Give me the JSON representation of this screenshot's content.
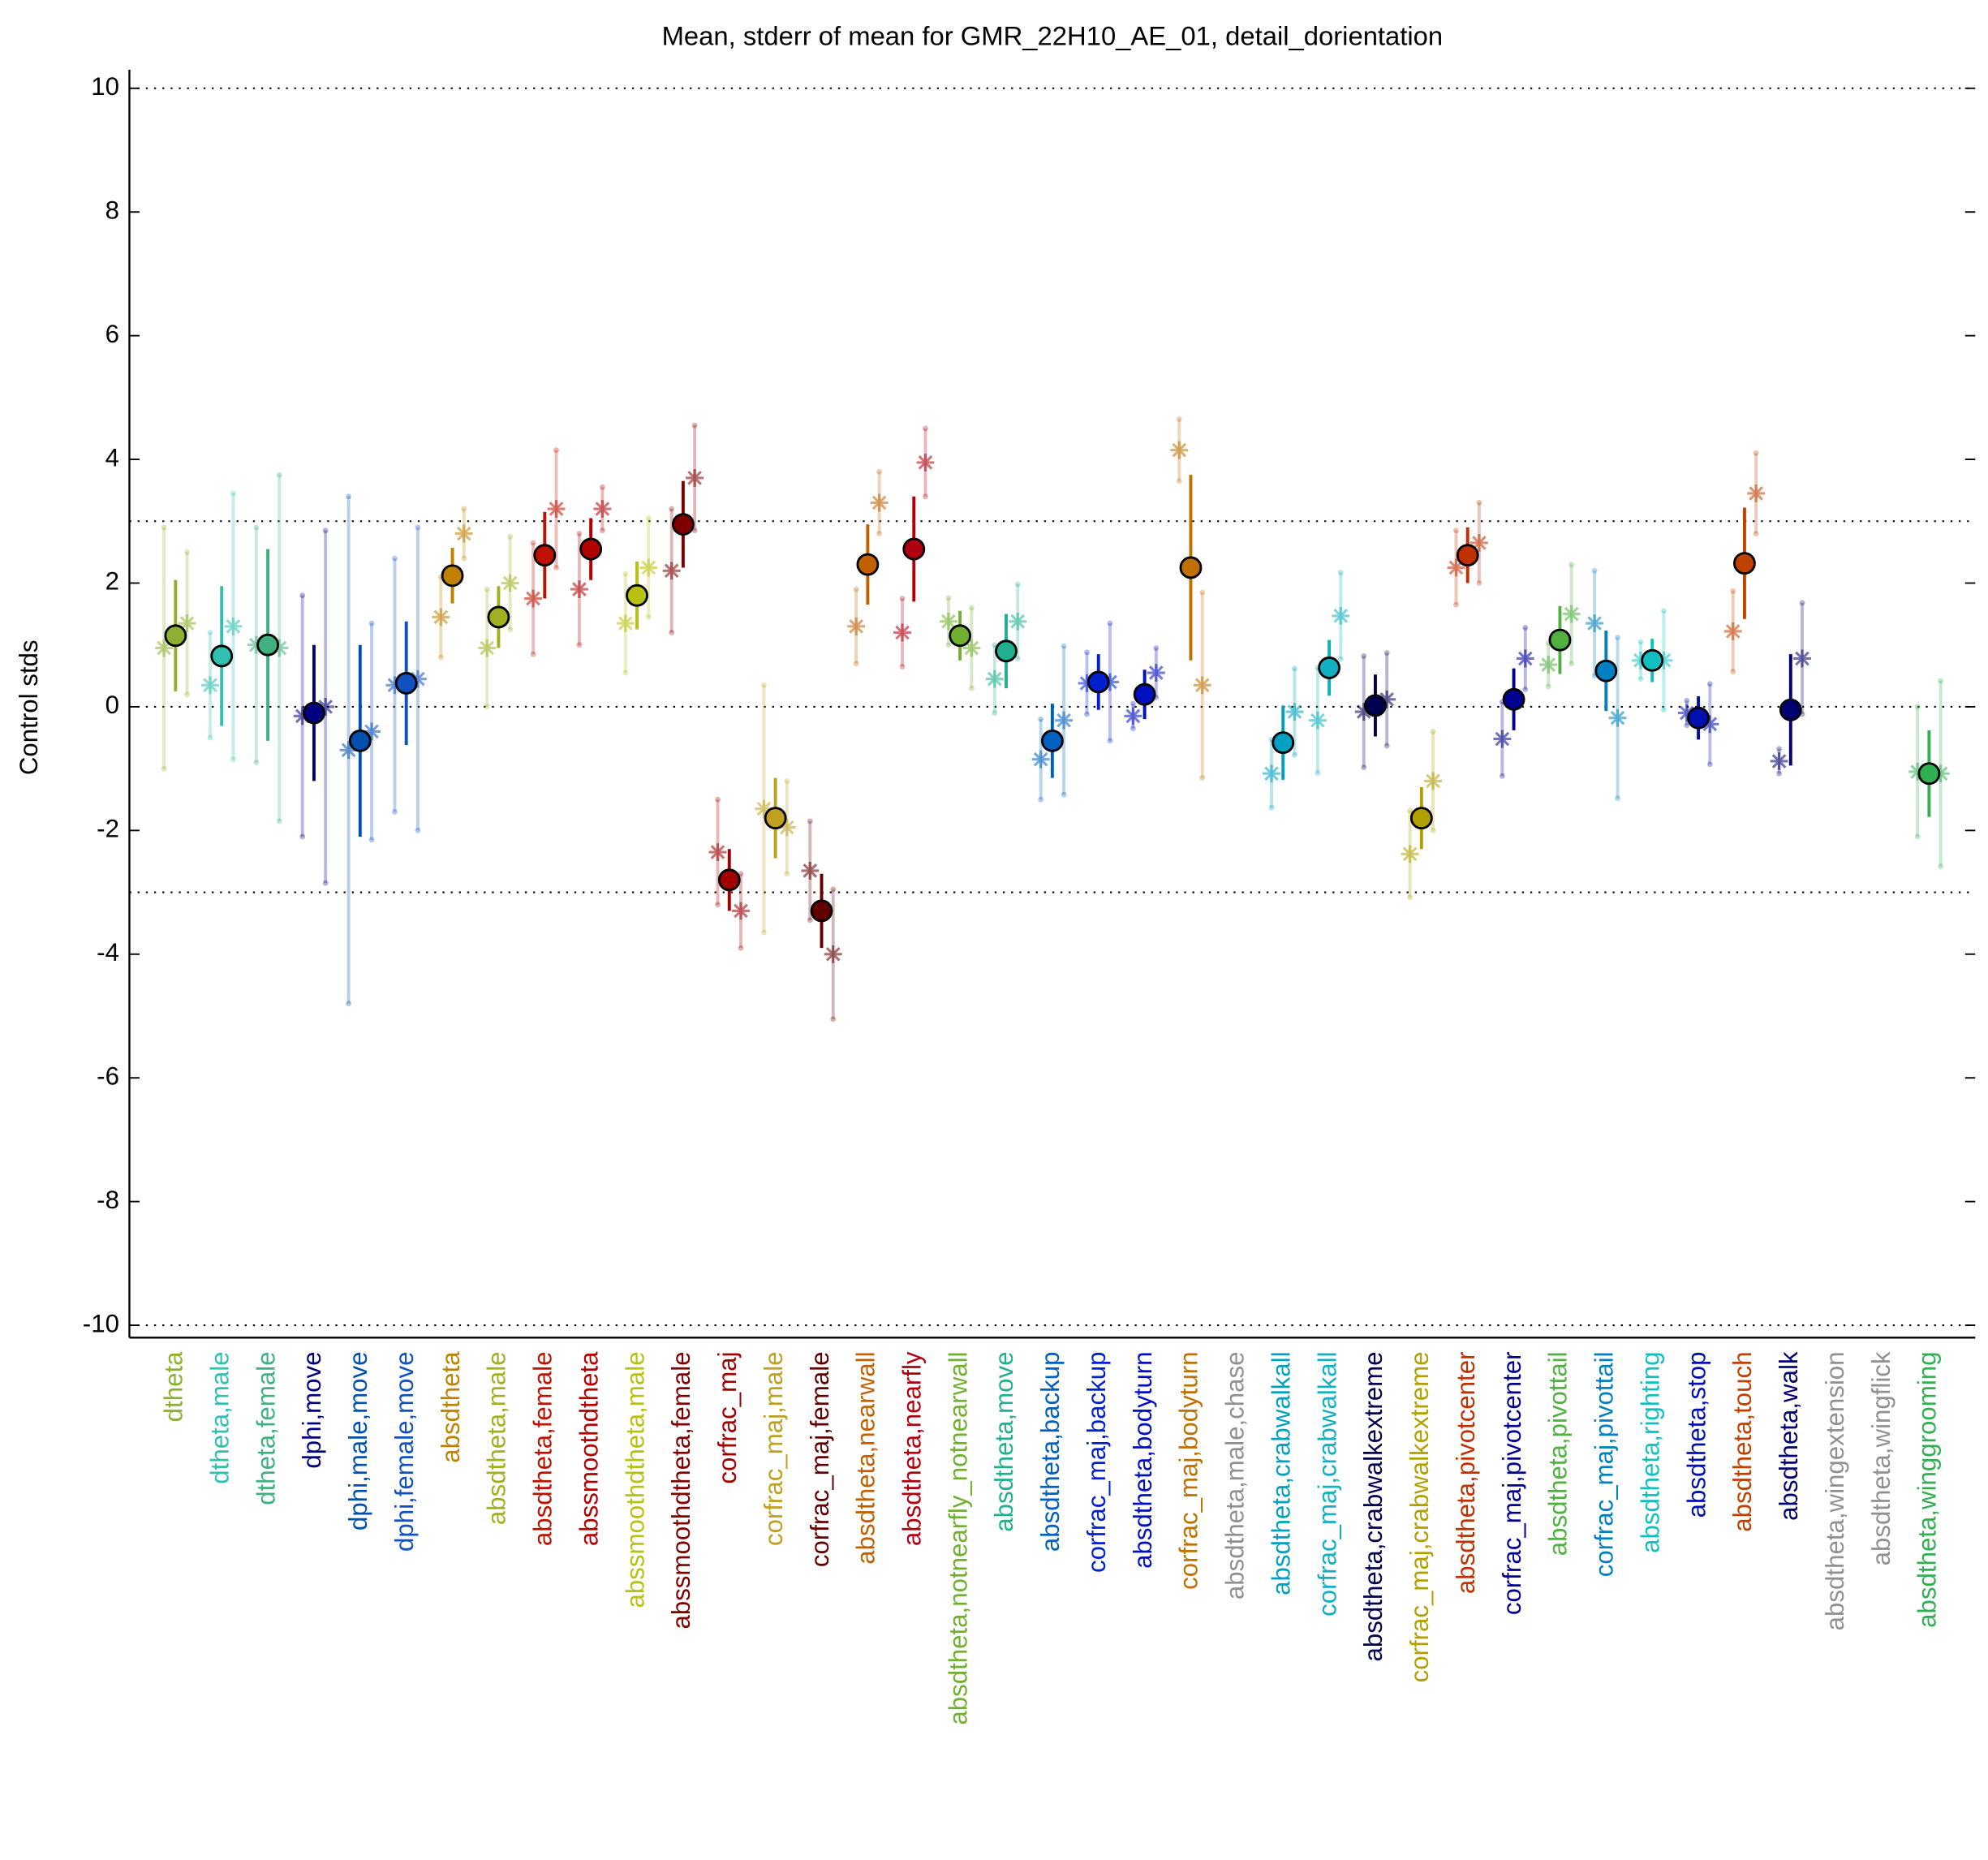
{
  "chart_data": {
    "type": "errorbar",
    "title": "Mean, stderr of mean for GMR_22H10_AE_01, detail_dorientation",
    "ylabel": "Control stds",
    "categories": [
      "dtheta",
      "dtheta,male",
      "dtheta,female",
      "dphi,move",
      "dphi,male,move",
      "dphi,female,move",
      "absdtheta",
      "absdtheta,male",
      "absdtheta,female",
      "abssmoothdtheta",
      "abssmoothdtheta,male",
      "abssmoothdtheta,female",
      "corfrac_maj",
      "corfrac_maj,male",
      "corfrac_maj,female",
      "absdtheta,nearwall",
      "absdtheta,nearfly",
      "absdtheta,notnearfly_notnearwall",
      "absdtheta,move",
      "absdtheta,backup",
      "corfrac_maj,backup",
      "absdtheta,bodyturn",
      "corfrac_maj,bodyturn",
      "absdtheta,male,chase",
      "absdtheta,crabwalkall",
      "corfrac_maj,crabwalkall",
      "absdtheta,crabwalkextreme",
      "corfrac_maj,crabwalkextreme",
      "absdtheta,pivotcenter",
      "corfrac_maj,pivotcenter",
      "absdtheta,pivottail",
      "corfrac_maj,pivottail",
      "absdtheta,righting",
      "absdtheta,stop",
      "absdtheta,touch",
      "absdtheta,walk",
      "absdtheta,wingextension",
      "absdtheta,wingflick",
      "absdtheta,winggrooming"
    ],
    "colors": [
      "#8db030",
      "#30c0b0",
      "#40b080",
      "#000080",
      "#0050b0",
      "#1050c0",
      "#c08000",
      "#a0b020",
      "#c01000",
      "#b00000",
      "#b8c010",
      "#800000",
      "#a00000",
      "#c0a020",
      "#600000",
      "#c06000",
      "#b00010",
      "#70b030",
      "#20b090",
      "#0060c0",
      "#0020d0",
      "#0010c0",
      "#c07000",
      "#909090",
      "#00a0c0",
      "#10b0c0",
      "#000050",
      "#b0a000",
      "#c03000",
      "#000090",
      "#50b040",
      "#0080c0",
      "#10c0c0",
      "#0010b0",
      "#c04000",
      "#000070",
      "#909090",
      "#909090",
      "#30b050"
    ],
    "means": [
      1.15,
      0.82,
      1.0,
      -0.1,
      -0.55,
      0.38,
      2.12,
      1.45,
      2.45,
      2.55,
      1.8,
      2.95,
      -2.8,
      -1.8,
      -3.3,
      2.3,
      2.55,
      1.15,
      0.9,
      -0.55,
      0.4,
      0.2,
      2.25,
      null,
      -0.58,
      0.63,
      0.02,
      -1.8,
      2.45,
      0.12,
      1.08,
      0.58,
      0.75,
      -0.18,
      2.32,
      -0.05,
      null,
      null,
      -1.08
    ],
    "errors": [
      0.9,
      1.13,
      1.55,
      1.1,
      1.55,
      1.0,
      0.45,
      0.5,
      0.7,
      0.5,
      0.55,
      0.7,
      0.5,
      0.65,
      0.6,
      0.65,
      0.85,
      0.4,
      0.6,
      0.6,
      0.45,
      0.4,
      1.5,
      null,
      0.6,
      0.45,
      0.5,
      0.5,
      0.45,
      0.5,
      0.55,
      0.65,
      0.35,
      0.35,
      0.9,
      0.9,
      null,
      null,
      0.7
    ],
    "male": [
      0.95,
      0.35,
      1.0,
      -0.15,
      -0.7,
      0.35,
      1.45,
      0.95,
      1.75,
      1.9,
      1.35,
      2.2,
      -2.35,
      -1.65,
      -2.65,
      1.3,
      1.2,
      1.38,
      0.45,
      -0.85,
      0.38,
      -0.15,
      4.15,
      null,
      -1.08,
      -0.22,
      -0.08,
      -2.38,
      2.25,
      -0.52,
      0.68,
      1.35,
      0.75,
      -0.1,
      1.22,
      -0.88,
      null,
      null,
      -1.05
    ],
    "male_errors": [
      1.95,
      0.85,
      1.9,
      1.95,
      4.1,
      2.05,
      0.65,
      0.95,
      0.9,
      0.9,
      0.8,
      1.0,
      0.85,
      2.0,
      0.8,
      0.6,
      0.55,
      0.38,
      0.55,
      0.65,
      0.5,
      0.2,
      0.5,
      null,
      0.55,
      0.85,
      0.9,
      0.7,
      0.6,
      0.6,
      0.35,
      0.85,
      0.3,
      0.2,
      0.65,
      0.2,
      null,
      null,
      1.05
    ],
    "female": [
      1.35,
      1.3,
      0.95,
      0.0,
      -0.4,
      0.45,
      2.8,
      2.0,
      3.2,
      3.2,
      2.25,
      3.7,
      -3.3,
      -1.95,
      -4.0,
      3.3,
      3.95,
      0.95,
      1.38,
      -0.22,
      0.4,
      0.55,
      0.35,
      null,
      -0.08,
      1.47,
      0.12,
      -1.2,
      2.65,
      0.78,
      1.5,
      -0.18,
      0.75,
      -0.28,
      3.45,
      0.78,
      null,
      null,
      -1.08
    ],
    "female_errors": [
      1.15,
      2.15,
      2.8,
      2.85,
      1.75,
      2.45,
      0.4,
      0.75,
      0.95,
      0.35,
      0.8,
      0.85,
      0.6,
      0.75,
      1.05,
      0.5,
      0.55,
      0.65,
      0.6,
      1.2,
      0.95,
      0.4,
      1.5,
      null,
      0.7,
      0.7,
      0.75,
      0.8,
      0.65,
      0.5,
      0.8,
      1.3,
      0.8,
      0.65,
      0.65,
      0.9,
      null,
      null,
      1.5
    ],
    "xlim": [
      -1,
      39
    ],
    "ylim": [
      -10.2,
      10.3
    ],
    "yticks": [
      -10,
      -8,
      -6,
      -4,
      -2,
      0,
      2,
      4,
      6,
      8,
      10
    ],
    "hlines": [
      -10,
      -3,
      0,
      3,
      10
    ]
  }
}
